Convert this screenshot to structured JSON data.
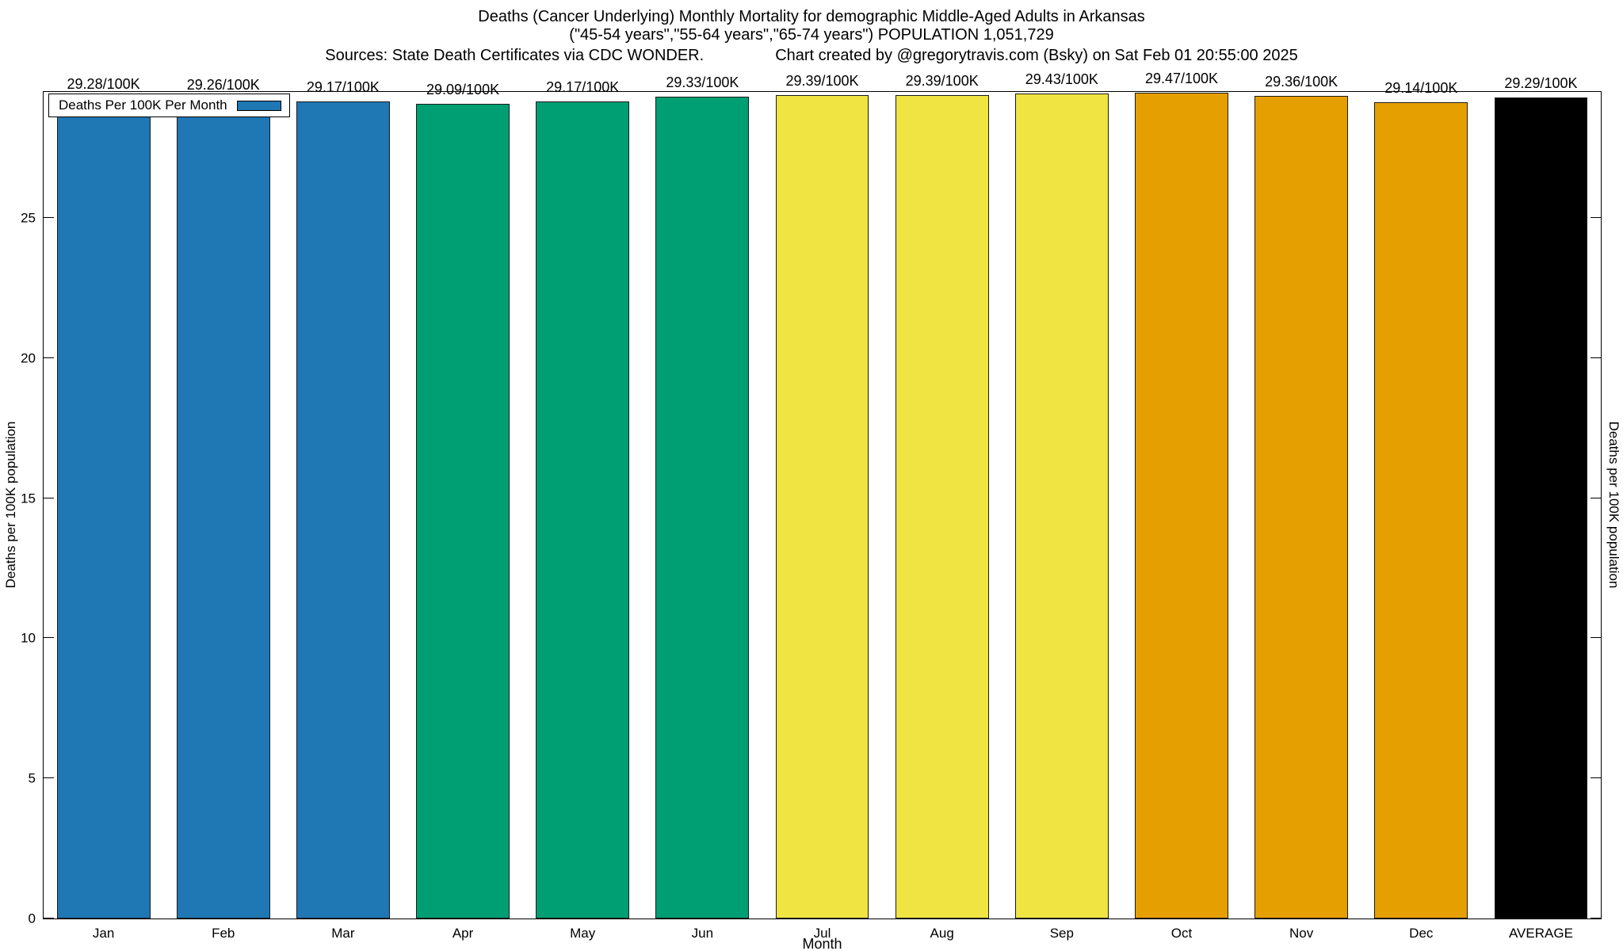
{
  "titles": {
    "line1": "Deaths (Cancer Underlying) Monthly Mortality for demographic Middle-Aged Adults in Arkansas",
    "line2": "(\"45-54 years\",\"55-64 years\",\"65-74 years\") POPULATION 1,051,729",
    "sources": "Sources: State Death Certificates via CDC WONDER.",
    "credit": "Chart created by @gregorytravis.com (Bsky) on Sat Feb 01 20:55:00 2025"
  },
  "legend": {
    "label": "Deaths Per 100K Per Month",
    "swatch_color": "#1f77b4"
  },
  "axes": {
    "ylabel_left": "Deaths per 100K population",
    "ylabel_right": "Deaths per 100K population",
    "xlabel": "Month"
  },
  "chart_data": {
    "type": "bar",
    "title": "Deaths (Cancer Underlying) Monthly Mortality for demographic Middle-Aged Adults in Arkansas",
    "categories": [
      "Jan",
      "Feb",
      "Mar",
      "Apr",
      "May",
      "Jun",
      "Jul",
      "Aug",
      "Sep",
      "Oct",
      "Nov",
      "Dec",
      "AVERAGE"
    ],
    "values": [
      29.28,
      29.26,
      29.17,
      29.09,
      29.17,
      29.33,
      29.39,
      29.39,
      29.43,
      29.47,
      29.36,
      29.14,
      29.29
    ],
    "bar_labels": [
      "29.28/100K",
      "29.26/100K",
      "29.17/100K",
      "29.09/100K",
      "29.17/100K",
      "29.33/100K",
      "29.39/100K",
      "29.39/100K",
      "29.43/100K",
      "29.47/100K",
      "29.36/100K",
      "29.14/100K",
      "29.29/100K"
    ],
    "colors": [
      "#1f77b4",
      "#1f77b4",
      "#1f77b4",
      "#009e73",
      "#009e73",
      "#009e73",
      "#f0e442",
      "#f0e442",
      "#f0e442",
      "#e69f00",
      "#e69f00",
      "#e69f00",
      "#000000"
    ],
    "yticks": [
      0,
      5,
      10,
      15,
      20,
      25
    ],
    "ylim": [
      0,
      29.5
    ],
    "xlabel": "Month",
    "ylabel": "Deaths per 100K population",
    "grid": false,
    "legend_position": "top-left"
  }
}
